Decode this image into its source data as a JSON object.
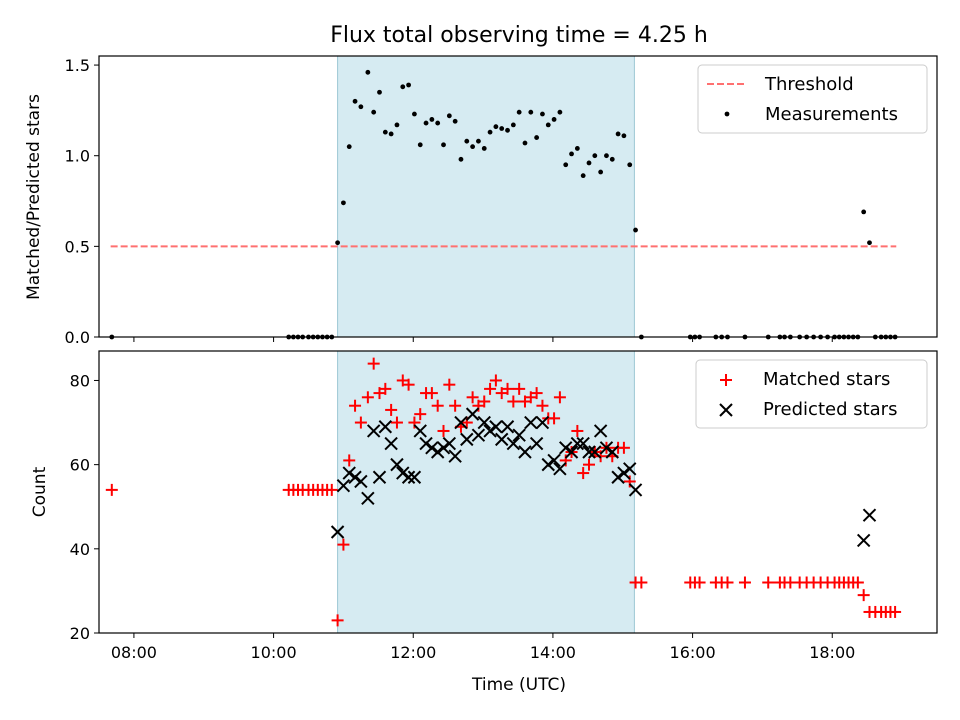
{
  "chart_data": [
    {
      "type": "scatter",
      "title": "Flux total observing time = 4.25 h",
      "xlabel": "",
      "ylabel": "Matched/Predicted stars",
      "xlim": [
        "07:30",
        "19:30"
      ],
      "ylim": [
        0,
        1.55
      ],
      "yticks": [
        0.0,
        0.5,
        1.0,
        1.5
      ],
      "ytick_labels": [
        "0.0",
        "0.5",
        "1.0",
        "1.5"
      ],
      "observing_window": [
        "10:55",
        "15:10"
      ],
      "legend_position": "upper right",
      "threshold": {
        "name": "Threshold",
        "value": 0.5,
        "x_range": [
          "07:40",
          "18:55"
        ],
        "color": "#ff7070",
        "style": "dashed"
      },
      "series": [
        {
          "name": "Measurements",
          "color": "#000000",
          "marker": "dot",
          "points": [
            [
              "07:41",
              0.0
            ],
            [
              "10:13",
              0.0
            ],
            [
              "10:17",
              0.0
            ],
            [
              "10:21",
              0.0
            ],
            [
              "10:25",
              0.0
            ],
            [
              "10:30",
              0.0
            ],
            [
              "10:34",
              0.0
            ],
            [
              "10:38",
              0.0
            ],
            [
              "10:42",
              0.0
            ],
            [
              "10:46",
              0.0
            ],
            [
              "10:50",
              0.0
            ],
            [
              "10:55",
              0.52
            ],
            [
              "11:00",
              0.74
            ],
            [
              "11:05",
              1.05
            ],
            [
              "11:10",
              1.3
            ],
            [
              "11:15",
              1.27
            ],
            [
              "11:21",
              1.46
            ],
            [
              "11:26",
              1.24
            ],
            [
              "11:31",
              1.35
            ],
            [
              "11:36",
              1.13
            ],
            [
              "11:41",
              1.12
            ],
            [
              "11:46",
              1.17
            ],
            [
              "11:51",
              1.38
            ],
            [
              "11:56",
              1.39
            ],
            [
              "12:01",
              1.23
            ],
            [
              "12:06",
              1.06
            ],
            [
              "12:11",
              1.18
            ],
            [
              "12:16",
              1.2
            ],
            [
              "12:21",
              1.18
            ],
            [
              "12:26",
              1.06
            ],
            [
              "12:31",
              1.22
            ],
            [
              "12:36",
              1.19
            ],
            [
              "12:41",
              0.98
            ],
            [
              "12:46",
              1.08
            ],
            [
              "12:51",
              1.05
            ],
            [
              "12:56",
              1.08
            ],
            [
              "13:01",
              1.04
            ],
            [
              "13:06",
              1.13
            ],
            [
              "13:11",
              1.16
            ],
            [
              "13:16",
              1.15
            ],
            [
              "13:21",
              1.14
            ],
            [
              "13:26",
              1.17
            ],
            [
              "13:31",
              1.24
            ],
            [
              "13:36",
              1.07
            ],
            [
              "13:41",
              1.24
            ],
            [
              "13:46",
              1.1
            ],
            [
              "13:51",
              1.23
            ],
            [
              "13:56",
              1.17
            ],
            [
              "14:01",
              1.2
            ],
            [
              "14:06",
              1.24
            ],
            [
              "14:11",
              0.95
            ],
            [
              "14:16",
              1.01
            ],
            [
              "14:21",
              1.04
            ],
            [
              "14:26",
              0.89
            ],
            [
              "14:31",
              0.96
            ],
            [
              "14:36",
              1.0
            ],
            [
              "14:41",
              0.91
            ],
            [
              "14:46",
              1.0
            ],
            [
              "14:51",
              0.98
            ],
            [
              "14:56",
              1.12
            ],
            [
              "15:01",
              1.11
            ],
            [
              "15:06",
              0.95
            ],
            [
              "15:11",
              0.59
            ],
            [
              "15:16",
              0.0
            ],
            [
              "15:58",
              0.0
            ],
            [
              "16:02",
              0.0
            ],
            [
              "16:06",
              0.0
            ],
            [
              "16:20",
              0.0
            ],
            [
              "16:25",
              0.0
            ],
            [
              "16:30",
              0.0
            ],
            [
              "16:45",
              0.0
            ],
            [
              "17:05",
              0.0
            ],
            [
              "17:15",
              0.0
            ],
            [
              "17:19",
              0.0
            ],
            [
              "17:24",
              0.0
            ],
            [
              "17:32",
              0.0
            ],
            [
              "17:38",
              0.0
            ],
            [
              "17:44",
              0.0
            ],
            [
              "17:50",
              0.0
            ],
            [
              "17:56",
              0.0
            ],
            [
              "18:02",
              0.0
            ],
            [
              "18:06",
              0.0
            ],
            [
              "18:10",
              0.0
            ],
            [
              "18:14",
              0.0
            ],
            [
              "18:18",
              0.0
            ],
            [
              "18:22",
              0.0
            ],
            [
              "18:27",
              0.69
            ],
            [
              "18:32",
              0.52
            ],
            [
              "18:37",
              0.0
            ],
            [
              "18:42",
              0.0
            ],
            [
              "18:46",
              0.0
            ],
            [
              "18:50",
              0.0
            ],
            [
              "18:54",
              0.0
            ]
          ]
        }
      ]
    },
    {
      "type": "scatter",
      "title": "",
      "xlabel": "Time (UTC)",
      "ylabel": "Count",
      "xlim": [
        "07:30",
        "19:30"
      ],
      "ylim": [
        20,
        87
      ],
      "yticks": [
        20,
        40,
        60,
        80
      ],
      "ytick_labels": [
        "20",
        "40",
        "60",
        "80"
      ],
      "xticks": [
        "08:00",
        "10:00",
        "12:00",
        "14:00",
        "16:00",
        "18:00"
      ],
      "xtick_labels": [
        "08:00",
        "10:00",
        "12:00",
        "14:00",
        "16:00",
        "18:00"
      ],
      "observing_window": [
        "10:55",
        "15:10"
      ],
      "legend_position": "upper right",
      "series": [
        {
          "name": "Matched stars",
          "color": "#ff0000",
          "marker": "plus",
          "points": [
            [
              "07:41",
              54
            ],
            [
              "10:13",
              54
            ],
            [
              "10:17",
              54
            ],
            [
              "10:21",
              54
            ],
            [
              "10:25",
              54
            ],
            [
              "10:30",
              54
            ],
            [
              "10:34",
              54
            ],
            [
              "10:38",
              54
            ],
            [
              "10:42",
              54
            ],
            [
              "10:46",
              54
            ],
            [
              "10:50",
              54
            ],
            [
              "10:55",
              23
            ],
            [
              "11:00",
              41
            ],
            [
              "11:05",
              61
            ],
            [
              "11:10",
              74
            ],
            [
              "11:15",
              70
            ],
            [
              "11:21",
              76
            ],
            [
              "11:26",
              84
            ],
            [
              "11:31",
              77
            ],
            [
              "11:36",
              78
            ],
            [
              "11:41",
              73
            ],
            [
              "11:46",
              70
            ],
            [
              "11:51",
              80
            ],
            [
              "11:56",
              79
            ],
            [
              "12:01",
              70
            ],
            [
              "12:06",
              72
            ],
            [
              "12:11",
              77
            ],
            [
              "12:16",
              77
            ],
            [
              "12:21",
              74
            ],
            [
              "12:26",
              68
            ],
            [
              "12:31",
              79
            ],
            [
              "12:36",
              74
            ],
            [
              "12:41",
              69
            ],
            [
              "12:46",
              70
            ],
            [
              "12:51",
              76
            ],
            [
              "12:56",
              74
            ],
            [
              "13:01",
              75
            ],
            [
              "13:06",
              78
            ],
            [
              "13:11",
              80
            ],
            [
              "13:16",
              77
            ],
            [
              "13:21",
              78
            ],
            [
              "13:26",
              75
            ],
            [
              "13:31",
              78
            ],
            [
              "13:36",
              75
            ],
            [
              "13:41",
              76
            ],
            [
              "13:46",
              77
            ],
            [
              "13:51",
              74
            ],
            [
              "13:56",
              71
            ],
            [
              "14:01",
              71
            ],
            [
              "14:06",
              76
            ],
            [
              "14:11",
              61
            ],
            [
              "14:16",
              63
            ],
            [
              "14:21",
              68
            ],
            [
              "14:26",
              58
            ],
            [
              "14:31",
              60
            ],
            [
              "14:36",
              63
            ],
            [
              "14:41",
              62
            ],
            [
              "14:46",
              64
            ],
            [
              "14:51",
              62
            ],
            [
              "14:56",
              64
            ],
            [
              "15:01",
              64
            ],
            [
              "15:06",
              56
            ],
            [
              "15:11",
              32
            ],
            [
              "15:16",
              32
            ],
            [
              "15:58",
              32
            ],
            [
              "16:02",
              32
            ],
            [
              "16:06",
              32
            ],
            [
              "16:20",
              32
            ],
            [
              "16:25",
              32
            ],
            [
              "16:30",
              32
            ],
            [
              "16:45",
              32
            ],
            [
              "17:05",
              32
            ],
            [
              "17:15",
              32
            ],
            [
              "17:19",
              32
            ],
            [
              "17:24",
              32
            ],
            [
              "17:32",
              32
            ],
            [
              "17:38",
              32
            ],
            [
              "17:44",
              32
            ],
            [
              "17:50",
              32
            ],
            [
              "17:56",
              32
            ],
            [
              "18:02",
              32
            ],
            [
              "18:06",
              32
            ],
            [
              "18:10",
              32
            ],
            [
              "18:14",
              32
            ],
            [
              "18:18",
              32
            ],
            [
              "18:22",
              32
            ],
            [
              "18:27",
              29
            ],
            [
              "18:32",
              25
            ],
            [
              "18:37",
              25
            ],
            [
              "18:42",
              25
            ],
            [
              "18:46",
              25
            ],
            [
              "18:50",
              25
            ],
            [
              "18:54",
              25
            ]
          ]
        },
        {
          "name": "Predicted stars",
          "color": "#000000",
          "marker": "x",
          "points": [
            [
              "10:55",
              44
            ],
            [
              "11:00",
              55
            ],
            [
              "11:05",
              58
            ],
            [
              "11:10",
              57
            ],
            [
              "11:15",
              56
            ],
            [
              "11:21",
              52
            ],
            [
              "11:26",
              68
            ],
            [
              "11:31",
              57
            ],
            [
              "11:36",
              69
            ],
            [
              "11:41",
              65
            ],
            [
              "11:46",
              60
            ],
            [
              "11:51",
              58
            ],
            [
              "11:56",
              57
            ],
            [
              "12:01",
              57
            ],
            [
              "12:06",
              68
            ],
            [
              "12:11",
              65
            ],
            [
              "12:16",
              64
            ],
            [
              "12:21",
              63
            ],
            [
              "12:26",
              64
            ],
            [
              "12:31",
              65
            ],
            [
              "12:36",
              62
            ],
            [
              "12:41",
              70
            ],
            [
              "12:46",
              66
            ],
            [
              "12:51",
              72
            ],
            [
              "12:56",
              67
            ],
            [
              "13:01",
              70
            ],
            [
              "13:06",
              68
            ],
            [
              "13:11",
              69
            ],
            [
              "13:16",
              66
            ],
            [
              "13:21",
              69
            ],
            [
              "13:26",
              65
            ],
            [
              "13:31",
              67
            ],
            [
              "13:36",
              63
            ],
            [
              "13:41",
              70
            ],
            [
              "13:46",
              65
            ],
            [
              "13:51",
              70
            ],
            [
              "13:56",
              60
            ],
            [
              "14:01",
              61
            ],
            [
              "14:06",
              59
            ],
            [
              "14:11",
              64
            ],
            [
              "14:16",
              63
            ],
            [
              "14:21",
              65
            ],
            [
              "14:26",
              65
            ],
            [
              "14:31",
              63
            ],
            [
              "14:36",
              63
            ],
            [
              "14:41",
              68
            ],
            [
              "14:46",
              64
            ],
            [
              "14:51",
              63
            ],
            [
              "14:56",
              57
            ],
            [
              "15:01",
              58
            ],
            [
              "15:06",
              59
            ],
            [
              "15:11",
              54
            ],
            [
              "18:27",
              42
            ],
            [
              "18:32",
              48
            ]
          ]
        }
      ]
    }
  ]
}
